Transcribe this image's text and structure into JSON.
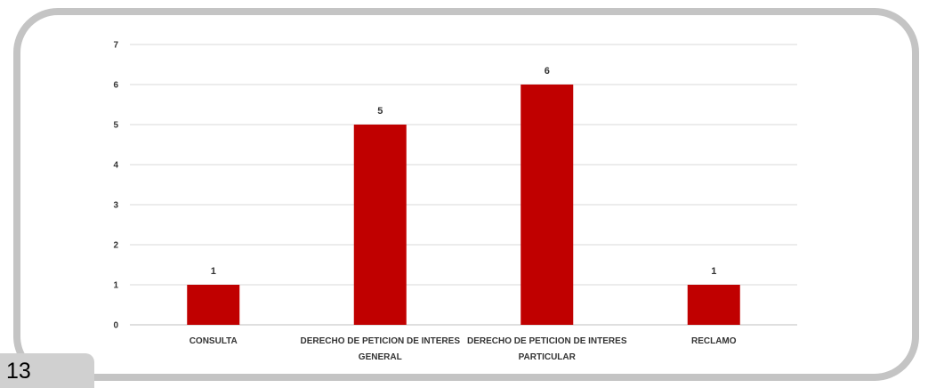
{
  "page": {
    "number": "13"
  },
  "colors": {
    "bar": "#c00000",
    "grid": "#d9d9d9",
    "frame": "#c4c4c4"
  },
  "chart_data": {
    "type": "bar",
    "title": "",
    "xlabel": "",
    "ylabel": "",
    "categories": [
      [
        "CONSULTA"
      ],
      [
        "DERECHO DE PETICION DE INTERES",
        "GENERAL"
      ],
      [
        "DERECHO DE PETICION DE INTERES",
        "PARTICULAR"
      ],
      [
        "RECLAMO"
      ]
    ],
    "values": [
      1,
      5,
      6,
      1
    ],
    "ylim": [
      0,
      7
    ],
    "yticks": [
      0,
      1,
      2,
      3,
      4,
      5,
      6,
      7
    ],
    "grid": true,
    "legend": "none",
    "data_labels": true
  }
}
